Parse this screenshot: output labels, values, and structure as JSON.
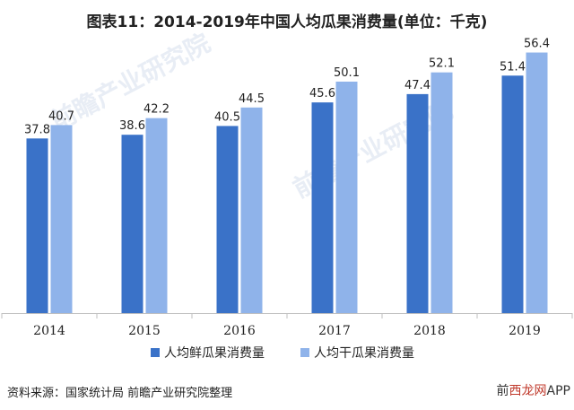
{
  "title": "图表11：2014-2019年中国人均瓜果消费量(单位：千克)",
  "source": "资料来源：国家统计局 前瞻产业研究院整理",
  "watermark_brand": "前瞻产业研究院",
  "corner_brand": {
    "left": "前",
    "highlight": "西龙网",
    "right": "APP"
  },
  "colors": {
    "series1": "#3a72c8",
    "series2": "#8fb3ea",
    "axis": "#bfbfbf",
    "text": "#222222"
  },
  "chart_data": {
    "type": "bar",
    "categories": [
      "2014",
      "2015",
      "2016",
      "2017",
      "2018",
      "2019"
    ],
    "series": [
      {
        "name": "人均鲜瓜果消费量",
        "values": [
          37.8,
          38.6,
          40.5,
          45.6,
          47.4,
          51.4
        ]
      },
      {
        "name": "人均干瓜果消费量",
        "values": [
          40.7,
          42.2,
          44.5,
          50.1,
          52.1,
          56.4
        ]
      }
    ],
    "ylim": [
      0,
      60
    ],
    "grid": false,
    "legend": "bottom",
    "data_labels": true
  }
}
